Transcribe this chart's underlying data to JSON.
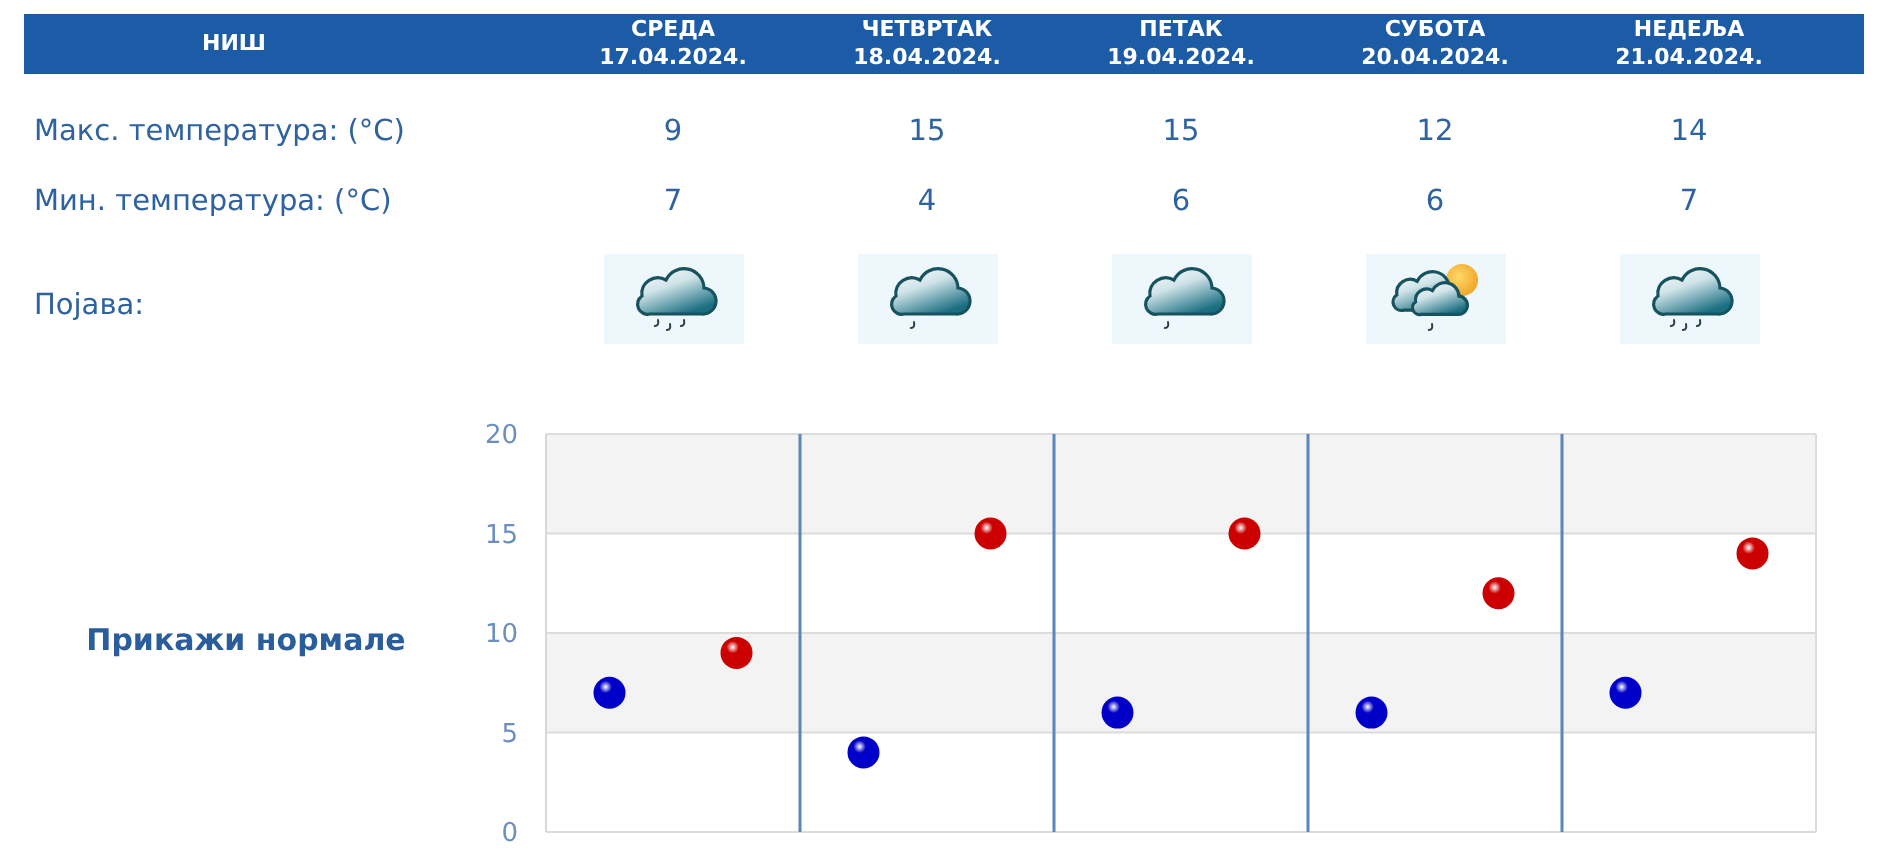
{
  "chart_data": [
    {
      "type": "other",
      "title": "НИШ",
      "categories": [
        "СРЕДА\n17.04.2024.",
        "ЧЕТВРТАК\n18.04.2024.",
        "ПЕТАК\n19.04.2024.",
        "СУБОТА\n20.04.2024.",
        "НЕДЕЉА\n21.04.2024."
      ],
      "series": [
        {
          "values": [
            9,
            15,
            15,
            12,
            14
          ]
        },
        {
          "values": [
            7,
            4,
            6,
            6,
            7
          ]
        }
      ],
      "data_labels": true,
      "annotations": [
        "Макс. температура: (°C)",
        "Мин. температура: (°C)",
        "Појава:"
      ]
    },
    {
      "type": "scatter",
      "categories": [
        null,
        null,
        null,
        null,
        null
      ],
      "series": [
        {
          "color": "#0000c8",
          "values": [
            7,
            4,
            6,
            6,
            7
          ]
        },
        {
          "color": "#cc0000",
          "values": [
            9,
            15,
            15,
            12,
            14
          ]
        }
      ],
      "ylim": [
        0,
        20
      ],
      "yticks": [
        0,
        5,
        10,
        15,
        20
      ],
      "grid": true,
      "marker": "circle",
      "tick_labels": "y",
      "annotations": [
        "Прикажи нормале"
      ]
    }
  ]
}
